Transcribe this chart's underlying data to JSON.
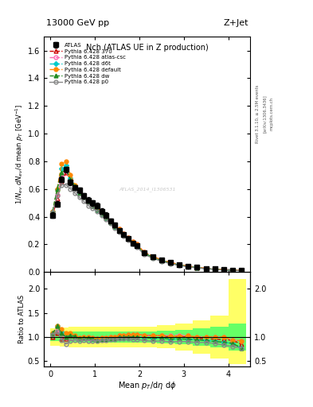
{
  "title_top": "13000 GeV pp",
  "title_right": "Z+Jet",
  "plot_title": "Nch (ATLAS UE in Z production)",
  "xlabel": "Mean $p_T$/d$\\eta$ d$\\phi$",
  "ylabel_main": "$1/N_{ev}$ $dN_{ev}$/d mean $p_T$ [GeV$^{-1}$]",
  "ylabel_ratio": "Ratio to ATLAS",
  "watermark": "ATLAS_2014_I1306531",
  "rivet_text": "Rivet 3.1.10, ≥ 2.5M events",
  "arxiv_text": "[arXiv:1306.3436]",
  "mcplots_text": "mcplots.cern.ch",
  "xlim": [
    -0.15,
    4.5
  ],
  "ylim_main": [
    0.0,
    1.7
  ],
  "ylim_ratio": [
    0.39,
    2.35
  ],
  "x_atlas": [
    0.05,
    0.15,
    0.25,
    0.35,
    0.45,
    0.55,
    0.65,
    0.75,
    0.85,
    0.95,
    1.05,
    1.15,
    1.25,
    1.35,
    1.45,
    1.55,
    1.65,
    1.75,
    1.85,
    1.95,
    2.1,
    2.3,
    2.5,
    2.7,
    2.9,
    3.1,
    3.3,
    3.5,
    3.7,
    3.9,
    4.1,
    4.3
  ],
  "y_atlas": [
    0.41,
    0.49,
    0.67,
    0.74,
    0.65,
    0.61,
    0.59,
    0.55,
    0.52,
    0.5,
    0.48,
    0.44,
    0.41,
    0.37,
    0.34,
    0.3,
    0.27,
    0.24,
    0.21,
    0.19,
    0.14,
    0.11,
    0.085,
    0.068,
    0.053,
    0.042,
    0.034,
    0.027,
    0.022,
    0.018,
    0.015,
    0.013
  ],
  "y_atlas_err": [
    0.02,
    0.02,
    0.02,
    0.02,
    0.02,
    0.02,
    0.02,
    0.02,
    0.02,
    0.02,
    0.02,
    0.02,
    0.02,
    0.015,
    0.015,
    0.012,
    0.01,
    0.01,
    0.008,
    0.008,
    0.006,
    0.005,
    0.004,
    0.003,
    0.003,
    0.002,
    0.002,
    0.002,
    0.002,
    0.001,
    0.001,
    0.001
  ],
  "x_370": [
    0.05,
    0.15,
    0.25,
    0.35,
    0.45,
    0.55,
    0.65,
    0.75,
    0.85,
    0.95,
    1.05,
    1.15,
    1.25,
    1.35,
    1.45,
    1.55,
    1.65,
    1.75,
    1.85,
    1.95,
    2.1,
    2.3,
    2.5,
    2.7,
    2.9,
    3.1,
    3.3,
    3.5,
    3.7,
    3.9,
    4.1,
    4.3
  ],
  "y_370": [
    0.41,
    0.53,
    0.65,
    0.72,
    0.67,
    0.62,
    0.58,
    0.54,
    0.51,
    0.48,
    0.46,
    0.43,
    0.4,
    0.37,
    0.34,
    0.31,
    0.28,
    0.25,
    0.22,
    0.2,
    0.145,
    0.113,
    0.088,
    0.068,
    0.053,
    0.042,
    0.033,
    0.026,
    0.021,
    0.017,
    0.014,
    0.011
  ],
  "x_atl_csc": [
    0.05,
    0.15,
    0.25,
    0.35,
    0.45,
    0.55,
    0.65,
    0.75,
    0.85,
    0.95,
    1.05,
    1.15,
    1.25,
    1.35,
    1.45,
    1.55,
    1.65,
    1.75,
    1.85,
    1.95,
    2.1,
    2.3,
    2.5,
    2.7,
    2.9,
    3.1,
    3.3,
    3.5,
    3.7,
    3.9,
    4.1,
    4.3
  ],
  "y_atl_csc": [
    0.43,
    0.56,
    0.69,
    0.73,
    0.67,
    0.62,
    0.58,
    0.55,
    0.52,
    0.49,
    0.46,
    0.43,
    0.4,
    0.37,
    0.34,
    0.31,
    0.28,
    0.25,
    0.22,
    0.2,
    0.145,
    0.113,
    0.088,
    0.07,
    0.055,
    0.043,
    0.034,
    0.027,
    0.022,
    0.018,
    0.014,
    0.012
  ],
  "x_d6t": [
    0.05,
    0.15,
    0.25,
    0.35,
    0.45,
    0.55,
    0.65,
    0.75,
    0.85,
    0.95,
    1.05,
    1.15,
    1.25,
    1.35,
    1.45,
    1.55,
    1.65,
    1.75,
    1.85,
    1.95,
    2.1,
    2.3,
    2.5,
    2.7,
    2.9,
    3.1,
    3.3,
    3.5,
    3.7,
    3.9,
    4.1,
    4.3
  ],
  "y_d6t": [
    0.44,
    0.6,
    0.75,
    0.77,
    0.68,
    0.62,
    0.57,
    0.54,
    0.51,
    0.48,
    0.45,
    0.42,
    0.39,
    0.36,
    0.33,
    0.3,
    0.27,
    0.24,
    0.21,
    0.19,
    0.138,
    0.107,
    0.083,
    0.065,
    0.051,
    0.04,
    0.032,
    0.025,
    0.02,
    0.016,
    0.013,
    0.01
  ],
  "x_default": [
    0.05,
    0.15,
    0.25,
    0.35,
    0.45,
    0.55,
    0.65,
    0.75,
    0.85,
    0.95,
    1.05,
    1.15,
    1.25,
    1.35,
    1.45,
    1.55,
    1.65,
    1.75,
    1.85,
    1.95,
    2.1,
    2.3,
    2.5,
    2.7,
    2.9,
    3.1,
    3.3,
    3.5,
    3.7,
    3.9,
    4.1,
    4.3
  ],
  "y_default": [
    0.44,
    0.6,
    0.78,
    0.8,
    0.7,
    0.63,
    0.58,
    0.55,
    0.52,
    0.49,
    0.46,
    0.43,
    0.4,
    0.37,
    0.34,
    0.31,
    0.28,
    0.25,
    0.22,
    0.2,
    0.145,
    0.113,
    0.088,
    0.069,
    0.054,
    0.043,
    0.034,
    0.027,
    0.022,
    0.018,
    0.014,
    0.012
  ],
  "x_dw": [
    0.05,
    0.15,
    0.25,
    0.35,
    0.45,
    0.55,
    0.65,
    0.75,
    0.85,
    0.95,
    1.05,
    1.15,
    1.25,
    1.35,
    1.45,
    1.55,
    1.65,
    1.75,
    1.85,
    1.95,
    2.1,
    2.3,
    2.5,
    2.7,
    2.9,
    3.1,
    3.3,
    3.5,
    3.7,
    3.9,
    4.1,
    4.3
  ],
  "y_dw": [
    0.44,
    0.6,
    0.72,
    0.74,
    0.67,
    0.62,
    0.57,
    0.54,
    0.51,
    0.48,
    0.45,
    0.42,
    0.39,
    0.36,
    0.33,
    0.3,
    0.27,
    0.24,
    0.21,
    0.19,
    0.138,
    0.107,
    0.083,
    0.065,
    0.051,
    0.04,
    0.032,
    0.025,
    0.02,
    0.016,
    0.013,
    0.01
  ],
  "x_p0": [
    0.05,
    0.15,
    0.25,
    0.35,
    0.45,
    0.55,
    0.65,
    0.75,
    0.85,
    0.95,
    1.05,
    1.15,
    1.25,
    1.35,
    1.45,
    1.55,
    1.65,
    1.75,
    1.85,
    1.95,
    2.1,
    2.3,
    2.5,
    2.7,
    2.9,
    3.1,
    3.3,
    3.5,
    3.7,
    3.9,
    4.1,
    4.3
  ],
  "y_p0": [
    0.43,
    0.55,
    0.63,
    0.63,
    0.6,
    0.57,
    0.54,
    0.51,
    0.48,
    0.46,
    0.44,
    0.41,
    0.38,
    0.35,
    0.32,
    0.29,
    0.26,
    0.23,
    0.2,
    0.18,
    0.13,
    0.1,
    0.078,
    0.061,
    0.048,
    0.038,
    0.03,
    0.024,
    0.019,
    0.015,
    0.012,
    0.01
  ],
  "color_370": "#cc0000",
  "color_atl_csc": "#ff69b4",
  "color_d6t": "#00cccc",
  "color_default": "#ff8800",
  "color_dw": "#228b22",
  "color_p0": "#888888",
  "color_atlas": "#000000",
  "band_x_edges": [
    0.0,
    0.2,
    0.4,
    0.6,
    0.8,
    1.0,
    1.2,
    1.4,
    1.6,
    1.8,
    2.0,
    2.4,
    2.8,
    3.2,
    3.6,
    4.0,
    4.4
  ],
  "band_green_lo": [
    0.92,
    0.9,
    0.89,
    0.89,
    0.89,
    0.89,
    0.89,
    0.89,
    0.89,
    0.89,
    0.88,
    0.87,
    0.85,
    0.82,
    0.78,
    0.72
  ],
  "band_green_hi": [
    1.08,
    1.1,
    1.11,
    1.11,
    1.11,
    1.11,
    1.11,
    1.11,
    1.11,
    1.11,
    1.12,
    1.13,
    1.15,
    1.18,
    1.22,
    1.28
  ],
  "band_yellow_lo": [
    0.82,
    0.8,
    0.79,
    0.79,
    0.79,
    0.79,
    0.79,
    0.79,
    0.79,
    0.79,
    0.78,
    0.76,
    0.72,
    0.65,
    0.55,
    0.43
  ],
  "band_yellow_hi": [
    1.18,
    1.2,
    1.21,
    1.21,
    1.21,
    1.21,
    1.21,
    1.21,
    1.21,
    1.21,
    1.22,
    1.24,
    1.28,
    1.35,
    1.45,
    2.2
  ]
}
